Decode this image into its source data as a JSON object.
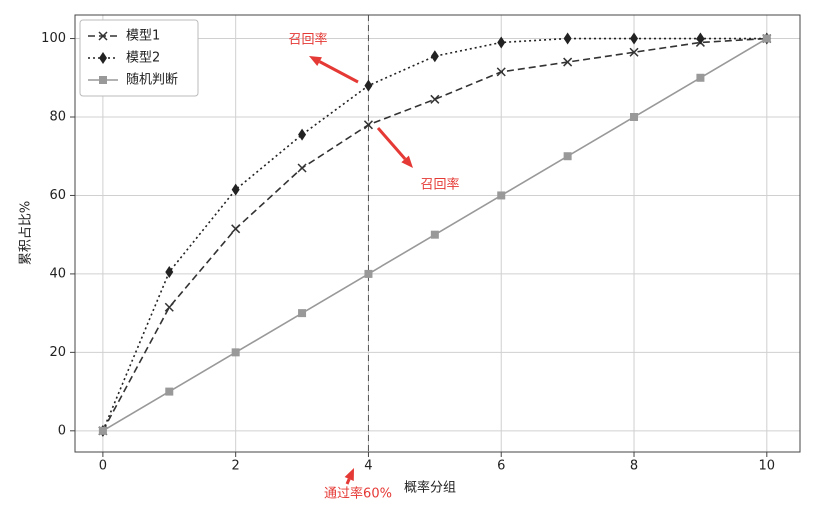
{
  "chart_data": {
    "type": "line",
    "x": [
      0,
      1,
      2,
      3,
      4,
      5,
      6,
      7,
      8,
      9,
      10
    ],
    "series": [
      {
        "name": "模型1",
        "color": "#333333",
        "linestyle": "dashed",
        "marker": "x",
        "values": [
          0,
          31.5,
          51.5,
          67,
          78,
          84.5,
          91.5,
          94,
          96.5,
          99,
          100
        ]
      },
      {
        "name": "模型2",
        "color": "#222222",
        "linestyle": "dotted",
        "marker": "diamond",
        "values": [
          0,
          40.5,
          61.5,
          75.5,
          88,
          95.5,
          99,
          100,
          100,
          100,
          100
        ]
      },
      {
        "name": "随机判断",
        "color": "#999999",
        "linestyle": "solid",
        "marker": "square",
        "values": [
          0,
          10,
          20,
          30,
          40,
          50,
          60,
          70,
          80,
          90,
          100
        ]
      }
    ],
    "xlabel": "概率分组",
    "ylabel": "累积占比%",
    "xlim": [
      -0.42,
      10.5
    ],
    "ylim": [
      -5.4,
      106
    ],
    "xticks": [
      0,
      2,
      4,
      6,
      8,
      10
    ],
    "yticks": [
      0,
      20,
      40,
      60,
      80,
      100
    ],
    "grid": true,
    "legend": "upper left",
    "vline": 4,
    "annotations": [
      {
        "text": "召回率",
        "color": "#e53935"
      },
      {
        "text": "召回率",
        "color": "#e53935"
      },
      {
        "text": "通过率60%",
        "color": "#e53935"
      }
    ]
  }
}
